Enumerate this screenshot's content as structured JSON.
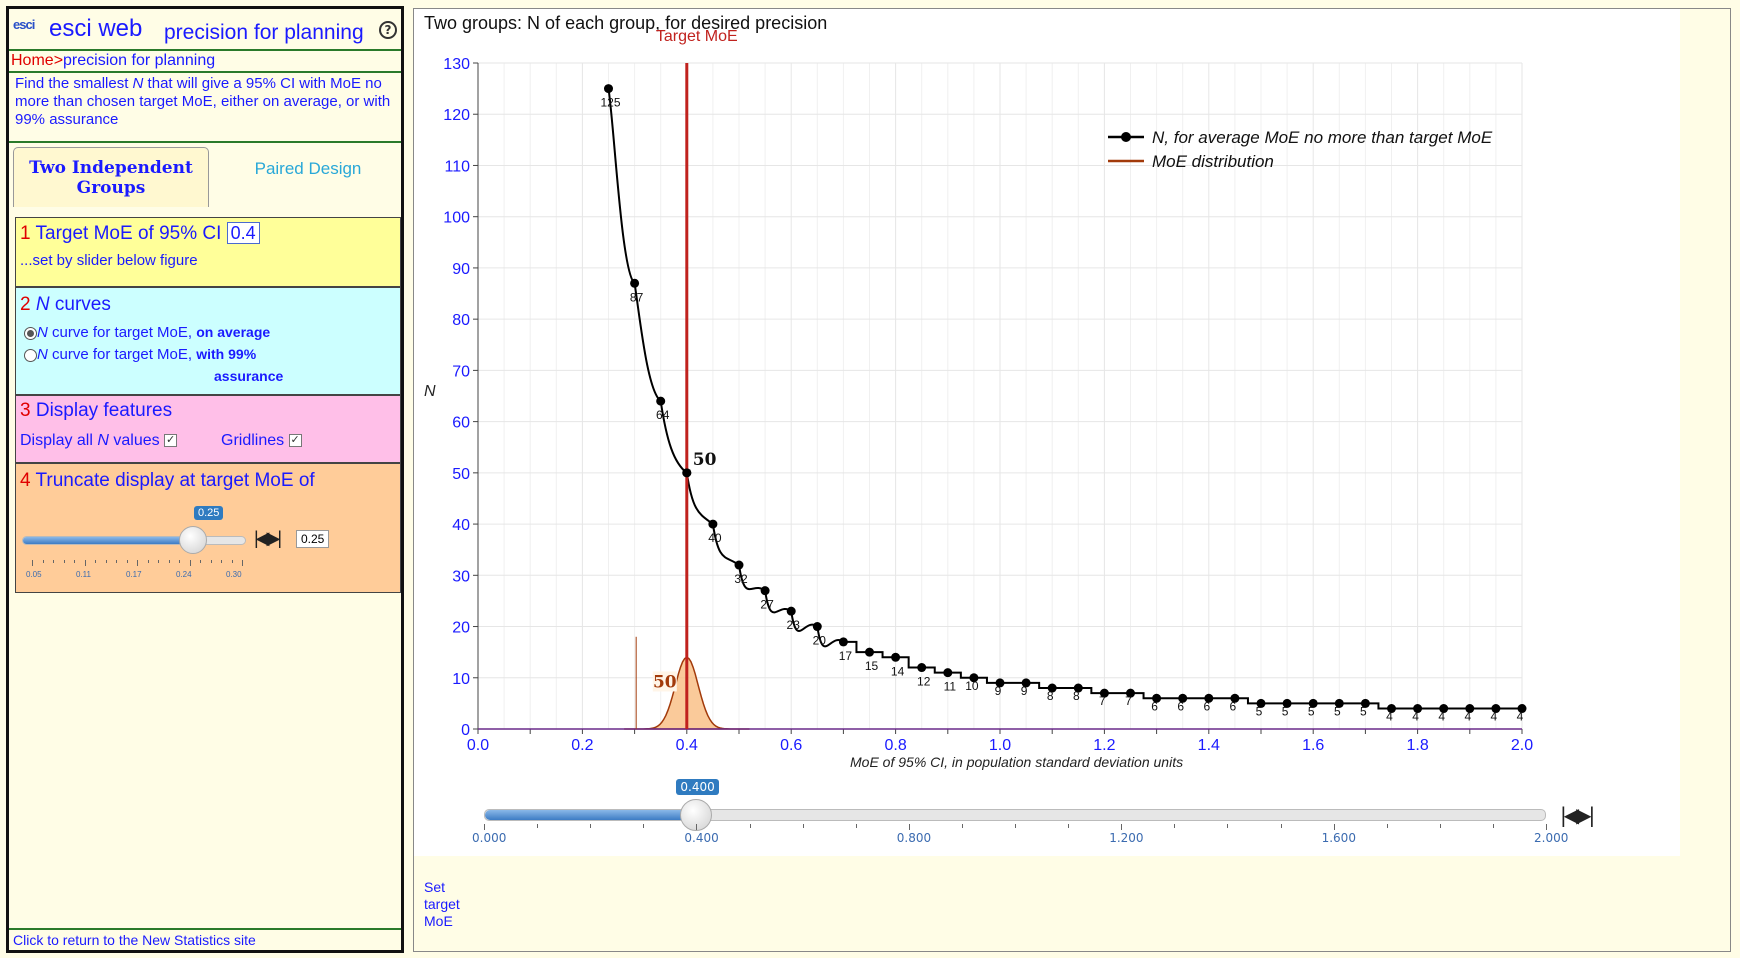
{
  "app": {
    "logo": "esci",
    "title": "esci web",
    "subtitle": "precision for planning",
    "help": "?"
  },
  "breadcrumb": {
    "home": "Home",
    "sep": ">",
    "page": "precision for planning"
  },
  "intro": {
    "part1": "Find the smallest ",
    "n": "N",
    "part2": " that will give a 95% CI with MoE no more than chosen target MoE, either on average, or with 99% assurance"
  },
  "tabs": [
    {
      "label": "Two Independent Groups",
      "active": true
    },
    {
      "label": "Paired Design",
      "active": false
    }
  ],
  "panel1": {
    "num": "1",
    "title": "Target MoE of 95% CI",
    "value": "0.4",
    "note": "...set by slider below figure"
  },
  "panel2": {
    "num": "2",
    "title_n": "N",
    "title": " curves",
    "opt1_n": "N",
    "opt1_text": " curve for target MoE, ",
    "opt1_bold": "on average",
    "opt2_n": "N",
    "opt2_text": " curve for target MoE, ",
    "opt2_bold1": "with 99%",
    "opt2_bold2": "assurance"
  },
  "panel3": {
    "num": "3",
    "title": "Display features",
    "opt1_a": "Display all ",
    "opt1_n": "N",
    "opt1_b": " values",
    "opt2": "Gridlines",
    "check": "✓"
  },
  "panel4": {
    "num": "4",
    "title": "Truncate display at target MoE of",
    "slider_value": 0.25,
    "badge": "0.25",
    "box_value": "0.25",
    "tick_labels": [
      "0.05",
      "0.11",
      "0.17",
      "0.24",
      "0.30"
    ]
  },
  "footer": "Click to return to the New Statistics site",
  "bottom_slider": {
    "label": "Set target MoE",
    "value": 0.4,
    "badge": "0.400",
    "tick_labels": [
      "0.000",
      "0.400",
      "0.800",
      "1.200",
      "1.600",
      "2.000"
    ]
  },
  "chart_data": {
    "type": "line",
    "title": "Two groups:  N of each group, for desired precision",
    "xlabel": "MoE of 95% CI, in population standard deviation units",
    "ylabel": "N",
    "xlim": [
      0,
      2
    ],
    "ylim": [
      0,
      130
    ],
    "x_ticks": [
      "0.0",
      "0.2",
      "0.4",
      "0.6",
      "0.8",
      "1.0",
      "1.2",
      "1.4",
      "1.6",
      "1.8",
      "2.0"
    ],
    "y_ticks": [
      "0",
      "10",
      "20",
      "30",
      "40",
      "50",
      "60",
      "70",
      "80",
      "90",
      "100",
      "110",
      "120",
      "130"
    ],
    "grid": true,
    "legend_position": "top-right",
    "legend": [
      {
        "label": "N,  for average MoE no more than target MoE",
        "color": "#000000",
        "marker": "dot-line"
      },
      {
        "label": "MoE distribution",
        "color": "#a23a0a",
        "marker": "line"
      }
    ],
    "target_label": "Target MoE",
    "target_moe": 0.4,
    "target_color": "#c0221e",
    "target_n": 50,
    "target_n_label": "50",
    "dist_n_label": "50",
    "dist_color": "#f8b878",
    "dist_edge_color": "#a23a0a",
    "truncate": 0.25,
    "points": [
      {
        "x": 0.25,
        "y": 125,
        "label": "125"
      },
      {
        "x": 0.3,
        "y": 87,
        "label": "87"
      },
      {
        "x": 0.35,
        "y": 64,
        "label": "64"
      },
      {
        "x": 0.4,
        "y": 50,
        "label": ""
      },
      {
        "x": 0.45,
        "y": 40,
        "label": "40"
      },
      {
        "x": 0.5,
        "y": 32,
        "label": "32"
      },
      {
        "x": 0.55,
        "y": 27,
        "label": "27"
      },
      {
        "x": 0.6,
        "y": 23,
        "label": "23"
      },
      {
        "x": 0.65,
        "y": 20,
        "label": "20"
      },
      {
        "x": 0.7,
        "y": 17,
        "label": "17"
      },
      {
        "x": 0.75,
        "y": 15,
        "label": "15"
      },
      {
        "x": 0.8,
        "y": 14,
        "label": "14"
      },
      {
        "x": 0.85,
        "y": 12,
        "label": "12"
      },
      {
        "x": 0.9,
        "y": 11,
        "label": "11"
      },
      {
        "x": 0.95,
        "y": 10,
        "label": "10"
      },
      {
        "x": 1.0,
        "y": 9,
        "label": "9"
      },
      {
        "x": 1.05,
        "y": 9,
        "label": "9"
      },
      {
        "x": 1.1,
        "y": 8,
        "label": "8"
      },
      {
        "x": 1.15,
        "y": 8,
        "label": "8"
      },
      {
        "x": 1.2,
        "y": 7,
        "label": "7"
      },
      {
        "x": 1.25,
        "y": 7,
        "label": "7"
      },
      {
        "x": 1.3,
        "y": 6,
        "label": "6"
      },
      {
        "x": 1.35,
        "y": 6,
        "label": "6"
      },
      {
        "x": 1.4,
        "y": 6,
        "label": "6"
      },
      {
        "x": 1.45,
        "y": 6,
        "label": "6"
      },
      {
        "x": 1.5,
        "y": 5,
        "label": "5"
      },
      {
        "x": 1.55,
        "y": 5,
        "label": "5"
      },
      {
        "x": 1.6,
        "y": 5,
        "label": "5"
      },
      {
        "x": 1.65,
        "y": 5,
        "label": "5"
      },
      {
        "x": 1.7,
        "y": 5,
        "label": "5"
      },
      {
        "x": 1.75,
        "y": 4,
        "label": "4"
      },
      {
        "x": 1.8,
        "y": 4,
        "label": "4"
      },
      {
        "x": 1.85,
        "y": 4,
        "label": "4"
      },
      {
        "x": 1.9,
        "y": 4,
        "label": "4"
      },
      {
        "x": 1.95,
        "y": 4,
        "label": "4"
      },
      {
        "x": 2.0,
        "y": 4,
        "label": "4"
      }
    ]
  }
}
